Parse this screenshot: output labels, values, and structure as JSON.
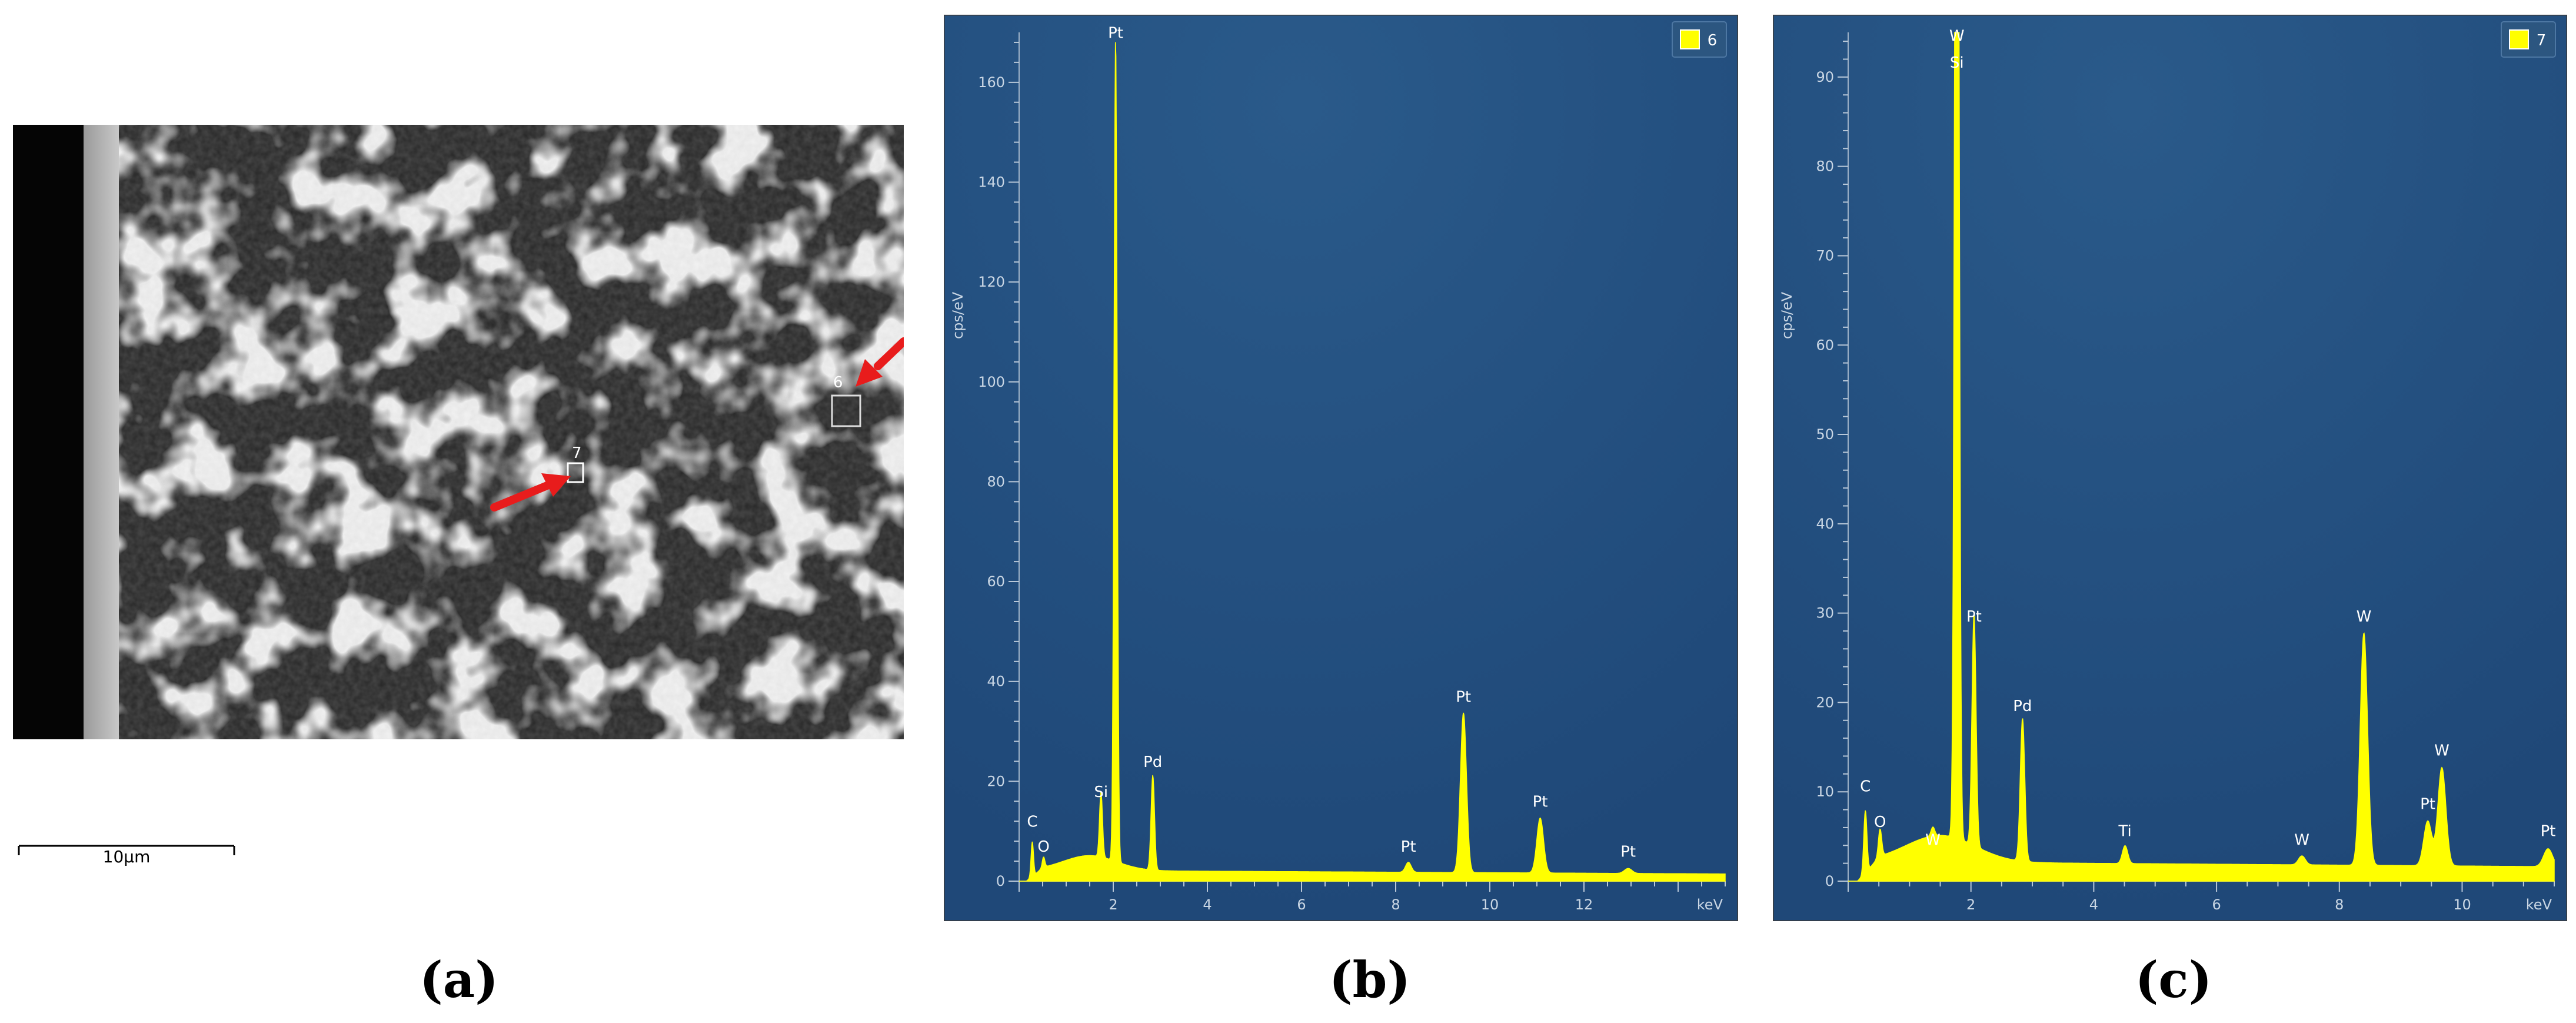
{
  "panel_labels": [
    "(a)",
    "(b)",
    "(c)"
  ],
  "sem": {
    "scalebar_label": "10µm",
    "markers": [
      {
        "label": "7",
        "arrow_color": "#e81c1c"
      },
      {
        "label": "6",
        "arrow_color": "#e81c1c"
      }
    ]
  },
  "chart_data": [
    {
      "type": "line",
      "legend": {
        "label": "6",
        "color": "#ffff00",
        "placement": "top-right"
      },
      "ylabel": "cps/eV",
      "xlabel": "keV",
      "xlim": [
        0,
        15
      ],
      "ylim": [
        0,
        170
      ],
      "x_ticks": [
        2,
        4,
        6,
        8,
        10,
        12
      ],
      "y_ticks": [
        0,
        20,
        40,
        60,
        80,
        100,
        120,
        140,
        160
      ],
      "background": "#1f4878",
      "series_color": "#ffff00",
      "peaks": [
        {
          "x": 0.28,
          "y": 9,
          "label": "C"
        },
        {
          "x": 0.52,
          "y": 4,
          "label": "O"
        },
        {
          "x": 1.74,
          "y": 15,
          "label": "Si"
        },
        {
          "x": 2.05,
          "y": 167,
          "label": "Pt"
        },
        {
          "x": 2.84,
          "y": 21,
          "label": "Pd"
        },
        {
          "x": 8.27,
          "y": 4,
          "label": "Pt"
        },
        {
          "x": 9.44,
          "y": 34,
          "label": "Pt"
        },
        {
          "x": 11.07,
          "y": 13,
          "label": "Pt"
        },
        {
          "x": 12.94,
          "y": 3,
          "label": "Pt"
        }
      ]
    },
    {
      "type": "line",
      "legend": {
        "label": "7",
        "color": "#ffff00",
        "placement": "top-right"
      },
      "ylabel": "cps/eV",
      "xlabel": "keV",
      "xlim": [
        0,
        11.5
      ],
      "ylim": [
        0,
        95
      ],
      "x_ticks": [
        2,
        4,
        6,
        8,
        10
      ],
      "y_ticks": [
        0,
        10,
        20,
        30,
        40,
        50,
        60,
        70,
        80,
        90
      ],
      "background": "#1f4878",
      "series_color": "#ffff00",
      "peaks": [
        {
          "x": 0.28,
          "y": 9,
          "label": "C"
        },
        {
          "x": 0.52,
          "y": 5,
          "label": "O"
        },
        {
          "x": 1.38,
          "y": 3,
          "label": "W"
        },
        {
          "x": 1.77,
          "y": 93,
          "label": "W"
        },
        {
          "x": 1.77,
          "y": 90,
          "label": "Si"
        },
        {
          "x": 2.05,
          "y": 28,
          "label": "Pt"
        },
        {
          "x": 2.84,
          "y": 18,
          "label": "Pd"
        },
        {
          "x": 4.51,
          "y": 4,
          "label": "Ti"
        },
        {
          "x": 7.39,
          "y": 3,
          "label": "W"
        },
        {
          "x": 8.4,
          "y": 28,
          "label": "W"
        },
        {
          "x": 9.44,
          "y": 7,
          "label": "Pt"
        },
        {
          "x": 9.67,
          "y": 13,
          "label": "W"
        },
        {
          "x": 11.4,
          "y": 4,
          "label": "Pt"
        }
      ]
    }
  ]
}
